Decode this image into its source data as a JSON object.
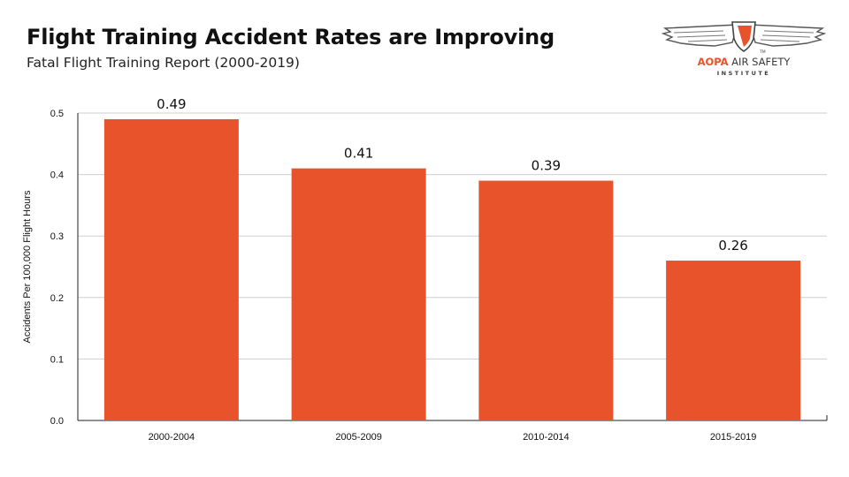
{
  "header": {
    "title": "Flight Training Accident Rates are Improving",
    "subtitle": "Fatal Flight Training Report (2000-2019)"
  },
  "logo": {
    "brand": "AOPA",
    "rest": " AIR SAFETY",
    "sub": "INSTITUTE",
    "tm": "TM",
    "icon": "winged-shield-icon"
  },
  "colors": {
    "bar": "#e9532b",
    "grid": "#cfcfcf",
    "axis": "#222222",
    "text": "#111111"
  },
  "chart_data": {
    "type": "bar",
    "categories": [
      "2000-2004",
      "2005-2009",
      "2010-2014",
      "2015-2019"
    ],
    "values": [
      0.49,
      0.41,
      0.39,
      0.26
    ],
    "value_labels": [
      "0.49",
      "0.41",
      "0.39",
      "0.26"
    ],
    "yticks": [
      "0.0",
      "0.1",
      "0.2",
      "0.3",
      "0.4",
      "0.5"
    ],
    "title": "Flight Training Accident Rates are Improving",
    "subtitle": "Fatal Flight Training Report (2000-2019)",
    "xlabel": "",
    "ylabel": "Accidents Per 100,000 Flight Hours",
    "ylim": [
      0,
      0.5
    ],
    "grid": true,
    "legend": "none"
  }
}
